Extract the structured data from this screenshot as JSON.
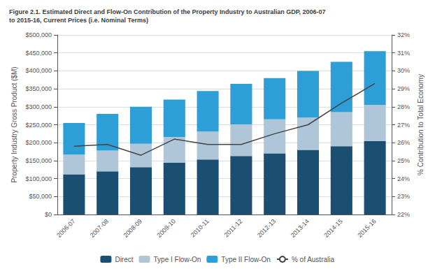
{
  "chart_data": {
    "type": "bar",
    "title": "Figure 2.1. Estimated Direct and Flow-On Contribution of the Property Industry to Australian GDP, 2006-07\nto 2015-16, Current Prices (i.e. Nominal Terms)",
    "categories": [
      "2006-07",
      "2007-08",
      "2008-09",
      "2009-10",
      "2010-11",
      "2011-12",
      "2012-13",
      "2013-14",
      "2014-15",
      "2015-16"
    ],
    "series": [
      {
        "name": "Direct",
        "color": "#1b4f72",
        "values": [
          112000,
          120000,
          132000,
          144000,
          153000,
          163000,
          170000,
          180000,
          190000,
          205000
        ]
      },
      {
        "name": "Type I Flow-On",
        "color": "#aec6d8",
        "values": [
          55000,
          58000,
          65000,
          72000,
          78000,
          88000,
          95000,
          90000,
          95000,
          100000
        ]
      },
      {
        "name": "Type II Flow-On",
        "color": "#2e9ed6",
        "values": [
          88000,
          102000,
          103000,
          104000,
          113000,
          113000,
          115000,
          130000,
          140000,
          150000
        ]
      },
      {
        "name": "% of Australia",
        "type": "line",
        "axis": "y2",
        "color": "#444444",
        "values": [
          25.8,
          25.9,
          25.3,
          26.2,
          25.9,
          25.9,
          26.5,
          27.0,
          28.2,
          29.3
        ]
      }
    ],
    "stacked": true,
    "ylabel": "Property Industry Gross Product ($M)",
    "y2label": "% Contribution to Total Economy",
    "ylim": [
      0,
      500000
    ],
    "yticks": [
      {
        "value": 0,
        "label": "$0"
      },
      {
        "value": 50000,
        "label": "$50,000"
      },
      {
        "value": 100000,
        "label": "$100,000"
      },
      {
        "value": 150000,
        "label": "$150,000"
      },
      {
        "value": 200000,
        "label": "$200,000"
      },
      {
        "value": 250000,
        "label": "$250,000"
      },
      {
        "value": 300000,
        "label": "$300,000"
      },
      {
        "value": 350000,
        "label": "$350,000"
      },
      {
        "value": 400000,
        "label": "$400,000"
      },
      {
        "value": 450000,
        "label": "$450,000"
      },
      {
        "value": 500000,
        "label": "$500,000"
      }
    ],
    "y2lim": [
      22,
      32
    ],
    "y2ticks": [
      {
        "value": 22,
        "label": "22%"
      },
      {
        "value": 23,
        "label": "23%"
      },
      {
        "value": 24,
        "label": "24%"
      },
      {
        "value": 25,
        "label": "25%"
      },
      {
        "value": 26,
        "label": "26%"
      },
      {
        "value": 27,
        "label": "27%"
      },
      {
        "value": 28,
        "label": "28%"
      },
      {
        "value": 29,
        "label": "29%"
      },
      {
        "value": 30,
        "label": "30%"
      },
      {
        "value": 31,
        "label": "31%"
      },
      {
        "value": 32,
        "label": "32%"
      }
    ],
    "grid": true,
    "legend": "bottom"
  }
}
